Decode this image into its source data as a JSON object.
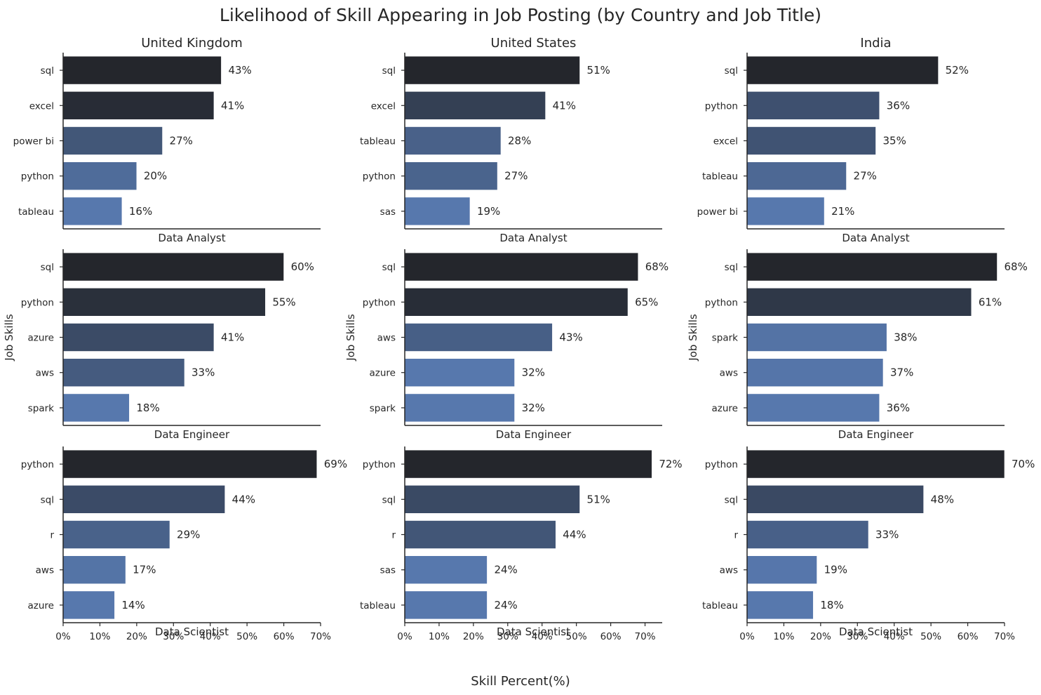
{
  "title": "Likelihood of Skill Appearing in Job Posting (by Country and Job Title)",
  "x_axis_label": "Skill Percent(%)",
  "y_axis_label": "Job Skills",
  "colors": {
    "dark": "#24262c",
    "light": "#5778ad"
  },
  "chart_data": {
    "type": "bar",
    "orientation": "horizontal",
    "xlim": [
      0,
      70
    ],
    "x_ticks": [
      "0%",
      "10%",
      "20%",
      "30%",
      "40%",
      "50%",
      "60%",
      "70%"
    ],
    "countries": [
      {
        "name": "United Kingdom",
        "xlim": [
          0,
          70
        ],
        "x_ticks": [
          "0%",
          "10%",
          "20%",
          "30%",
          "40%",
          "50%",
          "60%",
          "70%"
        ],
        "panels": [
          {
            "job_title": "Data Analyst",
            "skills": [
              "sql",
              "excel",
              "power bi",
              "python",
              "tableau"
            ],
            "values": [
              43,
              41,
              27,
              20,
              16
            ],
            "labels": [
              "43%",
              "41%",
              "27%",
              "20%",
              "16%"
            ]
          },
          {
            "job_title": "Data Engineer",
            "skills": [
              "sql",
              "python",
              "azure",
              "aws",
              "spark"
            ],
            "values": [
              60,
              55,
              41,
              33,
              18
            ],
            "labels": [
              "60%",
              "55%",
              "41%",
              "33%",
              "18%"
            ]
          },
          {
            "job_title": "Data Scientist",
            "skills": [
              "python",
              "sql",
              "r",
              "aws",
              "azure"
            ],
            "values": [
              69,
              44,
              29,
              17,
              14
            ],
            "labels": [
              "69%",
              "44%",
              "29%",
              "17%",
              "14%"
            ]
          }
        ]
      },
      {
        "name": "United States",
        "xlim": [
          0,
          75
        ],
        "x_ticks": [
          "0%",
          "10%",
          "20%",
          "30%",
          "40%",
          "50%",
          "60%",
          "70%"
        ],
        "panels": [
          {
            "job_title": "Data Analyst",
            "skills": [
              "sql",
              "excel",
              "tableau",
              "python",
              "sas"
            ],
            "values": [
              51,
              41,
              28,
              27,
              19
            ],
            "labels": [
              "51%",
              "41%",
              "28%",
              "27%",
              "19%"
            ]
          },
          {
            "job_title": "Data Engineer",
            "skills": [
              "sql",
              "python",
              "aws",
              "azure",
              "spark"
            ],
            "values": [
              68,
              65,
              43,
              32,
              32
            ],
            "labels": [
              "68%",
              "65%",
              "43%",
              "32%",
              "32%"
            ]
          },
          {
            "job_title": "Data Scientist",
            "skills": [
              "python",
              "sql",
              "r",
              "sas",
              "tableau"
            ],
            "values": [
              72,
              51,
              44,
              24,
              24
            ],
            "labels": [
              "72%",
              "51%",
              "44%",
              "24%",
              "24%"
            ]
          }
        ]
      },
      {
        "name": "India",
        "xlim": [
          0,
          70
        ],
        "x_ticks": [
          "0%",
          "10%",
          "20%",
          "30%",
          "40%",
          "50%",
          "60%",
          "70%"
        ],
        "panels": [
          {
            "job_title": "Data Analyst",
            "skills": [
              "sql",
              "python",
              "excel",
              "tableau",
              "power bi"
            ],
            "values": [
              52,
              36,
              35,
              27,
              21
            ],
            "labels": [
              "52%",
              "36%",
              "35%",
              "27%",
              "21%"
            ]
          },
          {
            "job_title": "Data Engineer",
            "skills": [
              "sql",
              "python",
              "spark",
              "aws",
              "azure"
            ],
            "values": [
              68,
              61,
              38,
              37,
              36
            ],
            "labels": [
              "68%",
              "61%",
              "38%",
              "37%",
              "36%"
            ]
          },
          {
            "job_title": "Data Scientist",
            "skills": [
              "python",
              "sql",
              "r",
              "aws",
              "tableau"
            ],
            "values": [
              70,
              48,
              33,
              19,
              18
            ],
            "labels": [
              "70%",
              "48%",
              "33%",
              "19%",
              "18%"
            ]
          }
        ]
      }
    ]
  }
}
